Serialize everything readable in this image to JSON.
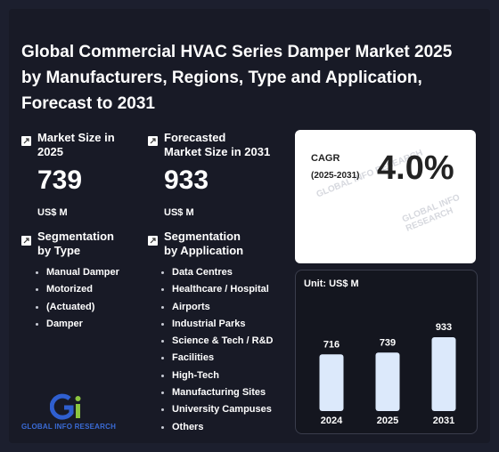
{
  "title": "Global Commercial HVAC Series Damper Market 2025 by Manufacturers, Regions, Type and Application, Forecast to 2031",
  "market_size": {
    "label": "Market Size in 2025",
    "label_line1": "Market Size in",
    "label_line2": "2025",
    "value": "739",
    "unit": "US$ M"
  },
  "forecast_size": {
    "label_line1": "Forecasted",
    "label_line2": "Market Size in 2031",
    "value": "933",
    "unit": "US$ M"
  },
  "cagr": {
    "label": "CAGR",
    "years": "(2025-2031)",
    "value": "4.0%"
  },
  "segment_type": {
    "label_line1": "Segmentation",
    "label_line2": "by Type",
    "items": [
      "Manual Damper",
      "Motorized",
      "(Actuated)",
      "Damper"
    ]
  },
  "segment_application": {
    "label_line1": "Segmentation",
    "label_line2": "by Application",
    "items": [
      "Data Centres",
      "Healthcare / Hospital",
      "Airports",
      "Industrial Parks",
      "Science & Tech / R&D",
      "Facilities",
      "High-Tech",
      "Manufacturing Sites",
      "University Campuses",
      "Others"
    ]
  },
  "chart_data": {
    "type": "bar",
    "unit_label": "Unit: US$ M",
    "categories": [
      "2024",
      "2025",
      "2031"
    ],
    "values": [
      716,
      739,
      933
    ],
    "ylim": [
      0,
      1000
    ],
    "bar_color": "#dce9fb"
  },
  "logo": {
    "text": "GLOBAL INFO RESEARCH",
    "colors": {
      "blue": "#2f5fd0",
      "green": "#8cc63f"
    }
  },
  "watermark": "GLOBAL INFO RESEARCH"
}
